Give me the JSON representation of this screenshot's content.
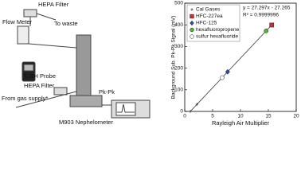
{
  "diagram": {
    "labels": [
      "HEPA Filter",
      "Flow Meter",
      "To waste",
      "HEPA Filter",
      "T, RH Probe",
      "From gas supply*",
      "Pk-Pk",
      "M903 Nephelometer"
    ]
  },
  "chart_data": {
    "type": "scatter",
    "xlabel": "Rayleigh Air Multiplier",
    "ylabel": "Background Sub. Pk-Pk Signal (mV)",
    "xlim": [
      0,
      20
    ],
    "xticks": [
      0,
      5,
      10,
      15,
      20
    ],
    "ylim": [
      0,
      500
    ],
    "yticks": [
      0,
      100,
      200,
      300,
      400,
      500
    ],
    "annotations": [
      "y = 27.297x - 27.265",
      "R² = 0.9999996"
    ],
    "trendline": {
      "x": [
        1,
        16
      ],
      "y": [
        0,
        410
      ],
      "color": "#333333"
    },
    "series": [
      {
        "name": "Cal Gases",
        "color": "#333333",
        "marker": "plus",
        "x": [
          1,
          2.2,
          7.6,
          15.6
        ],
        "values": [
          0,
          33,
          180,
          399
        ]
      },
      {
        "name": "HFC-227ea",
        "color": "#d42a2a",
        "marker": "square",
        "x": [
          15.6
        ],
        "values": [
          399
        ]
      },
      {
        "name": "HFC-125",
        "color": "#2f4fa8",
        "marker": "diamond",
        "x": [
          7.7
        ],
        "values": [
          183
        ]
      },
      {
        "name": "hexafluoropropene",
        "color": "#4cb82e",
        "marker": "circle",
        "x": [
          14.6
        ],
        "values": [
          372
        ]
      },
      {
        "name": "sulfur hexafluoride",
        "color": "#ffffff",
        "marker": "circle",
        "x": [
          6.7
        ],
        "values": [
          156
        ]
      }
    ]
  }
}
